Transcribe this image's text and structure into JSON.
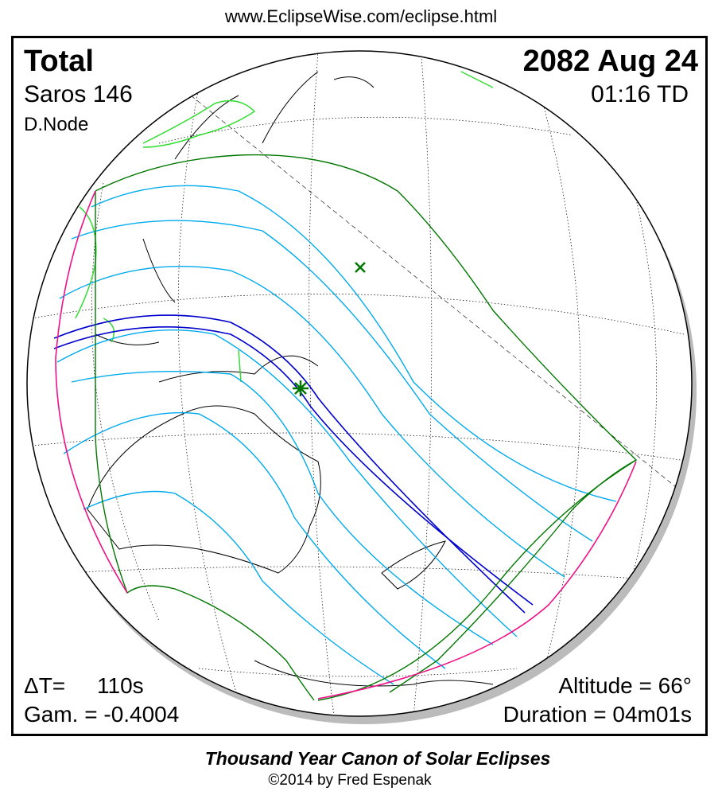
{
  "header": {
    "url": "www.EclipseWise.com/eclipse.html"
  },
  "eclipse": {
    "type": "Total",
    "saros": "Saros 146",
    "node": "D.Node",
    "date": "2082 Aug 24",
    "time": "01:16 TD",
    "delta_t_label": "ΔT=",
    "delta_t_value": "110s",
    "gamma": "Gam. = -0.4004",
    "altitude": "Altitude = 66°",
    "duration": "Duration = 04m01s"
  },
  "footer": {
    "title": "Thousand Year Canon of Solar Eclipses",
    "credit": "©2014 by Fred Espenak"
  },
  "colors": {
    "central_path": "#0000cc",
    "penumbral_lines": "#00aaee",
    "outer_limits": "#007700",
    "rise_set_limits": "#ee1188",
    "daylight_terminator_land": "#33dd33",
    "shadow": "#bbbbbb"
  },
  "icons": {
    "greatest_eclipse": "star-marker",
    "subsolar_point": "x-marker"
  }
}
